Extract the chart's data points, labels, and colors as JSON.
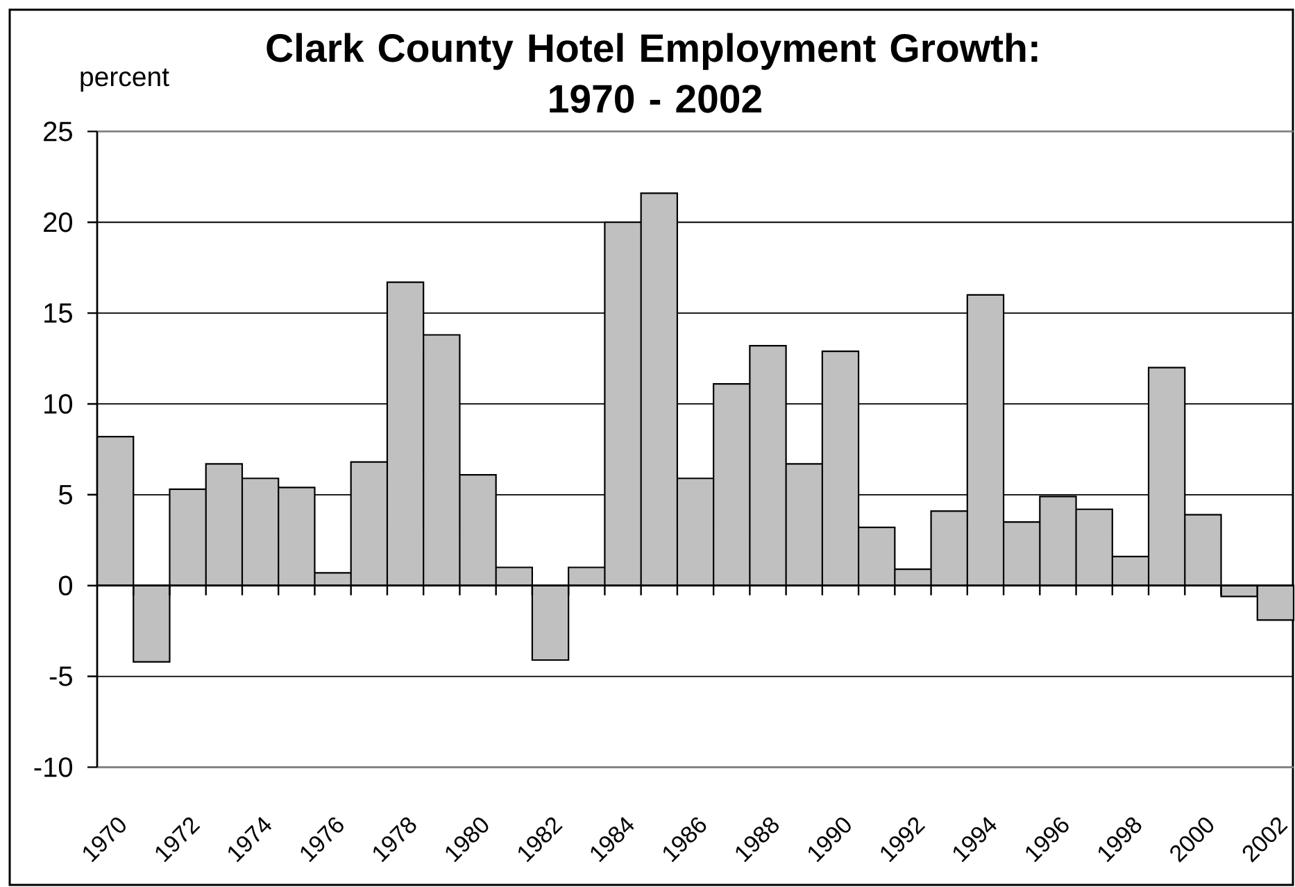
{
  "chart_data": {
    "type": "bar",
    "title": "Clark County Hotel Employment Growth: 1970 - 2002",
    "ylabel": "percent",
    "categories": [
      "1970",
      null,
      "1972",
      null,
      "1974",
      null,
      "1976",
      null,
      "1978",
      null,
      "1980",
      null,
      "1982",
      null,
      "1984",
      null,
      "1986",
      null,
      "1988",
      null,
      "1990",
      null,
      "1992",
      null,
      "1994",
      null,
      "1996",
      null,
      "1998",
      null,
      "2000",
      null,
      "2002"
    ],
    "values": [
      8.2,
      -4.2,
      5.3,
      6.7,
      5.9,
      5.4,
      0.7,
      6.8,
      16.7,
      13.8,
      6.1,
      1.0,
      -4.1,
      1.0,
      20.0,
      21.6,
      5.9,
      11.1,
      13.2,
      6.7,
      12.9,
      3.2,
      0.9,
      4.1,
      16.0,
      3.5,
      4.9,
      4.2,
      1.6,
      12.0,
      3.9,
      -0.6,
      -1.9
    ],
    "color": "#c0c0c0",
    "ylim": [
      -10,
      25
    ],
    "yticks": [
      -10,
      -5,
      0,
      5,
      10,
      15,
      20,
      25
    ],
    "grid": "y"
  }
}
